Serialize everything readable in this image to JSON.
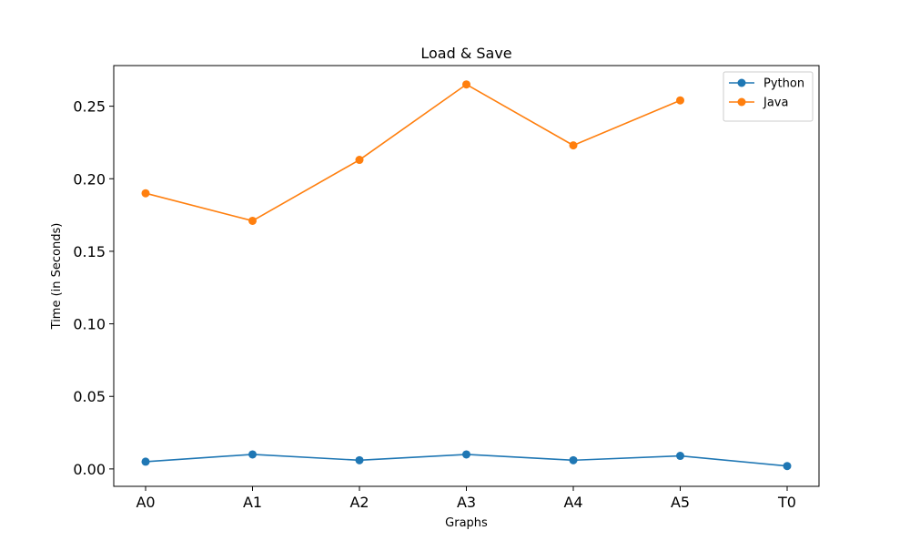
{
  "chart_data": {
    "type": "line",
    "title": "Load & Save",
    "xlabel": "Graphs",
    "ylabel": "Time (in Seconds)",
    "categories": [
      "A0",
      "A1",
      "A2",
      "A3",
      "A4",
      "A5",
      "T0"
    ],
    "ylim": [
      -0.012,
      0.278
    ],
    "yticks": [
      0.0,
      0.05,
      0.1,
      0.15,
      0.2,
      0.25
    ],
    "ytick_labels": [
      "0.00",
      "0.05",
      "0.10",
      "0.15",
      "0.20",
      "0.25"
    ],
    "grid": false,
    "legend_position": "top-right",
    "series": [
      {
        "name": "Python",
        "color": "#1f77b4",
        "marker": "circle",
        "values": [
          0.005,
          0.01,
          0.006,
          0.01,
          0.006,
          0.009,
          0.002
        ]
      },
      {
        "name": "Java",
        "color": "#ff7f0e",
        "marker": "circle",
        "values": [
          0.19,
          0.171,
          0.213,
          0.265,
          0.223,
          0.254,
          null
        ]
      }
    ]
  }
}
